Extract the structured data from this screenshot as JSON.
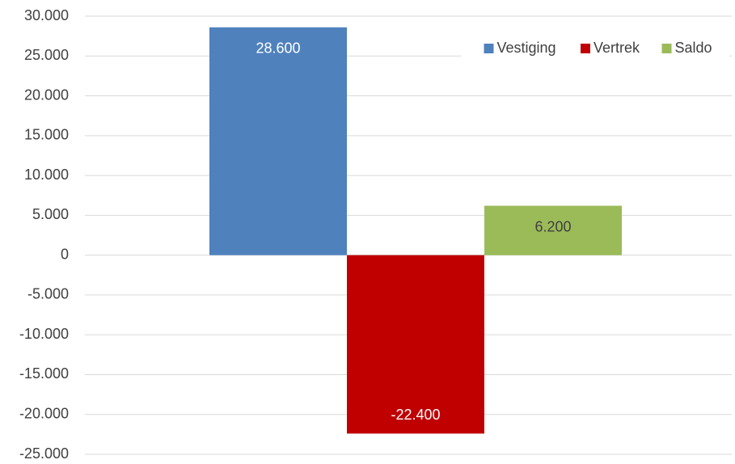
{
  "chart_data": {
    "type": "bar",
    "categories": [
      null
    ],
    "series": [
      {
        "name": "Vestiging",
        "color": "#4f81bd",
        "values": [
          28600
        ],
        "value_labels": [
          "28.600"
        ]
      },
      {
        "name": "Vertrek",
        "color": "#c00000",
        "values": [
          -22400
        ],
        "value_labels": [
          "-22.400"
        ]
      },
      {
        "name": "Saldo",
        "color": "#9bbb59",
        "values": [
          6200
        ],
        "value_labels": [
          "6.200"
        ]
      }
    ],
    "ylim": [
      -25000,
      30000
    ],
    "yticks": [
      {
        "value": -25000,
        "label": "-25.000"
      },
      {
        "value": -20000,
        "label": "-20.000"
      },
      {
        "value": -15000,
        "label": "-15.000"
      },
      {
        "value": -10000,
        "label": "-10.000"
      },
      {
        "value": -5000,
        "label": "-5.000"
      },
      0,
      {
        "value": 5000,
        "label": "5.000"
      },
      {
        "value": 10000,
        "label": "10.000"
      },
      {
        "value": 15000,
        "label": "15.000"
      },
      {
        "value": 20000,
        "label": "20.000"
      },
      {
        "value": 25000,
        "label": "25.000"
      },
      {
        "value": 30000,
        "label": "30.000"
      }
    ],
    "grid": true,
    "legend": "upper right"
  }
}
